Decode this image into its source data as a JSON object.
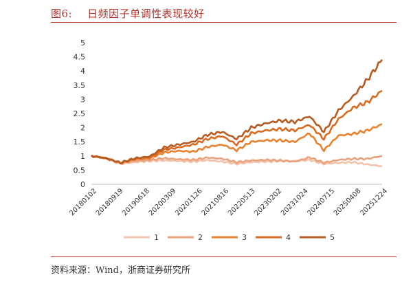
{
  "figure": {
    "number": "图6:",
    "title": "日频因子单调性表现较好",
    "source": "资料来源：Wind，浙商证券研究所"
  },
  "chart_data": {
    "type": "line",
    "title": "",
    "xlabel": "",
    "ylabel": "",
    "ylim": [
      0,
      5
    ],
    "yticks": [
      "0",
      "0.5",
      "1",
      "1.5",
      "2",
      "2.5",
      "3",
      "3.5",
      "4",
      "4.5",
      "5"
    ],
    "xticks": [
      "20180102",
      "20180919",
      "20190618",
      "20200309",
      "20201126",
      "20210816",
      "20220513",
      "20230202",
      "20231024",
      "20240715",
      "20250408",
      "20251224"
    ],
    "legend_position": "bottom",
    "grid": false,
    "colors": [
      "#f2c3ad",
      "#eba27a",
      "#e8822f",
      "#d86a22",
      "#b75b20"
    ],
    "series": [
      {
        "name": "1",
        "values": [
          1.0,
          0.92,
          0.72,
          0.78,
          0.82,
          0.84,
          0.82,
          0.8,
          0.85,
          0.8,
          0.72,
          0.78,
          0.8,
          0.82,
          0.82,
          0.86,
          0.72,
          0.76,
          0.78,
          0.7,
          0.64
        ]
      },
      {
        "name": "2",
        "values": [
          1.0,
          0.92,
          0.74,
          0.82,
          0.86,
          0.92,
          0.88,
          0.86,
          0.94,
          0.9,
          0.78,
          0.84,
          0.86,
          0.84,
          0.8,
          0.95,
          0.76,
          0.86,
          0.9,
          0.9,
          1.0
        ]
      },
      {
        "name": "3",
        "values": [
          1.0,
          0.92,
          0.75,
          0.88,
          0.92,
          1.12,
          1.18,
          1.15,
          1.32,
          1.4,
          1.2,
          1.5,
          1.55,
          1.55,
          1.5,
          1.8,
          1.2,
          1.72,
          1.78,
          1.9,
          2.12
        ]
      },
      {
        "name": "4",
        "values": [
          1.0,
          0.92,
          0.76,
          0.9,
          0.95,
          1.22,
          1.3,
          1.4,
          1.6,
          1.7,
          1.4,
          1.8,
          1.9,
          1.95,
          1.9,
          2.1,
          1.6,
          2.3,
          2.7,
          2.9,
          3.3
        ]
      },
      {
        "name": "5",
        "values": [
          1.0,
          0.92,
          0.76,
          0.92,
          0.98,
          1.3,
          1.4,
          1.5,
          1.75,
          1.85,
          1.6,
          2.0,
          2.15,
          2.25,
          2.2,
          2.4,
          1.85,
          2.6,
          3.1,
          3.7,
          4.4
        ]
      }
    ]
  }
}
